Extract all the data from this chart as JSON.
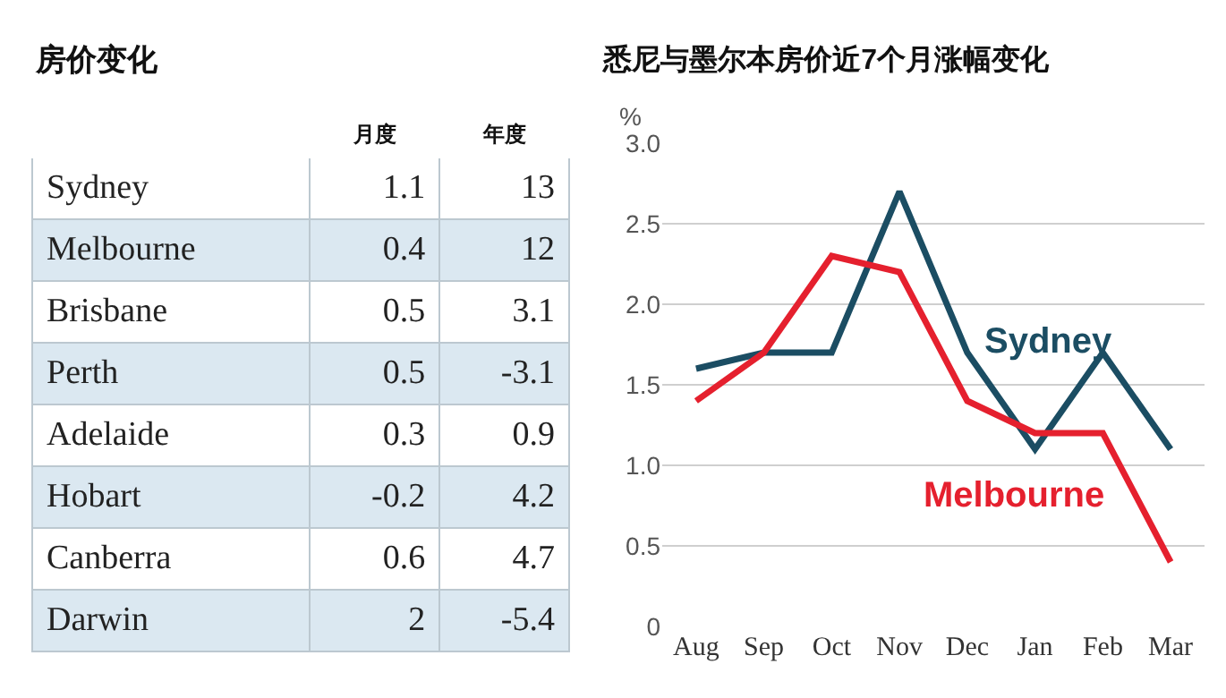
{
  "chart_data": [
    {
      "type": "other",
      "title": "房价变化",
      "categories": [
        "Sydney",
        "Melbourne",
        "Brisbane",
        "Perth",
        "Adelaide",
        "Hobart",
        "Canberra",
        "Darwin"
      ],
      "data_labels": true,
      "series": [
        {
          "name": "月度",
          "colors": [
            "#ffffff",
            "#dbe8f1",
            "#ffffff",
            "#dbe8f1",
            "#ffffff",
            "#dbe8f1",
            "#ffffff",
            "#dbe8f1"
          ],
          "values": [
            1.1,
            0.4,
            0.5,
            0.5,
            0.3,
            -0.2,
            0.6,
            2
          ]
        },
        {
          "name": "年度",
          "colors": [
            "#ffffff",
            "#dbe8f1",
            "#ffffff",
            "#dbe8f1",
            "#ffffff",
            "#dbe8f1",
            "#ffffff",
            "#dbe8f1"
          ],
          "values": [
            13,
            12,
            3.1,
            -3.1,
            0.9,
            4.2,
            4.7,
            -5.4
          ]
        }
      ]
    },
    {
      "type": "line",
      "title": "悉尼与墨尔本房价近7个月涨幅变化",
      "ylabel": "%",
      "categories": [
        "Aug",
        "Sep",
        "Oct",
        "Nov",
        "Dec",
        "Jan",
        "Feb",
        "Mar"
      ],
      "series": [
        {
          "name": "Sydney",
          "color": "#1b4d63",
          "values": [
            1.6,
            1.7,
            1.7,
            2.7,
            1.7,
            1.1,
            1.7,
            1.1
          ]
        },
        {
          "name": "Melbourne",
          "color": "#e5202e",
          "values": [
            1.4,
            1.7,
            2.3,
            2.2,
            1.4,
            1.2,
            1.2,
            0.4
          ]
        }
      ],
      "ylim": [
        0,
        3
      ],
      "yticks": [
        0,
        0.5,
        {
          "value": 1,
          "label": "1.0"
        },
        1.5,
        {
          "value": 2,
          "label": "2.0"
        },
        2.5,
        {
          "value": 3,
          "label": "3.0"
        }
      ],
      "grid": "y",
      "legend": false,
      "marker": "none",
      "line_style": "solid"
    }
  ]
}
